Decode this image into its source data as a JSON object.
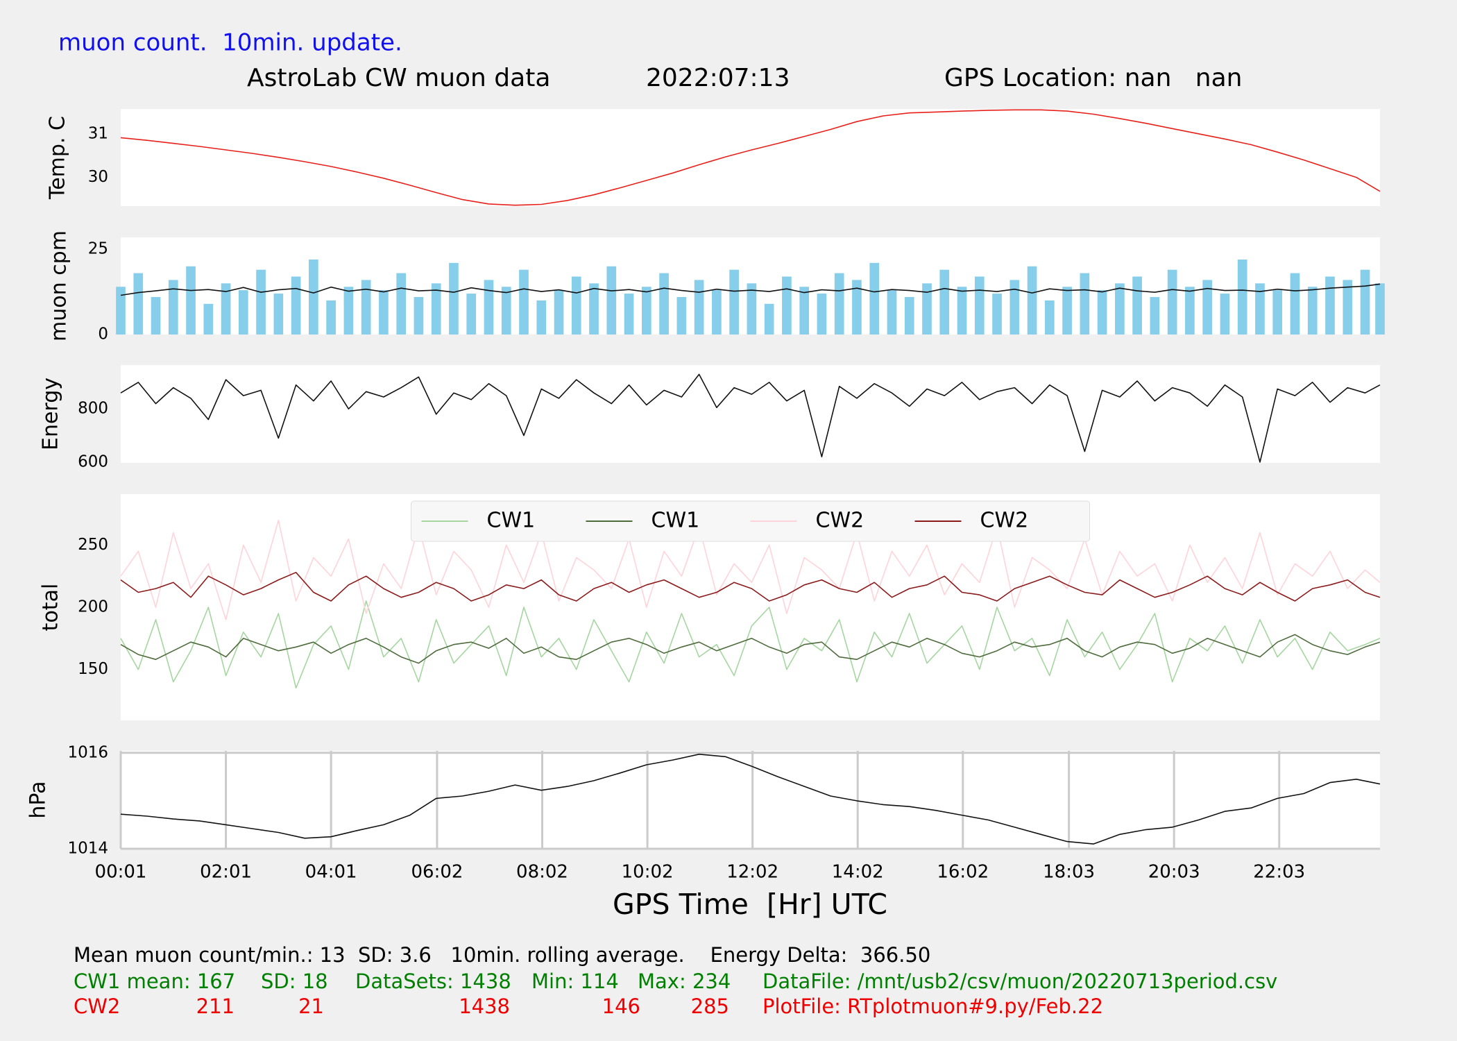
{
  "header": {
    "subtitle": "muon count.  10min. update.",
    "title": "AstroLab CW muon data",
    "date": "2022:07:13",
    "location": "GPS Location: nan   nan"
  },
  "chart_data": [
    {
      "type": "line",
      "ylabel": "Temp. C",
      "xlim": [
        1,
        1438
      ],
      "ylim": [
        29.34,
        31.57
      ],
      "yticks": [
        30,
        31
      ],
      "x": [
        1,
        31,
        61,
        91,
        121,
        151,
        181,
        211,
        241,
        271,
        301,
        331,
        361,
        391,
        421,
        451,
        481,
        511,
        541,
        571,
        601,
        631,
        661,
        691,
        721,
        751,
        781,
        811,
        841,
        871,
        901,
        931,
        961,
        991,
        1021,
        1051,
        1081,
        1111,
        1141,
        1171,
        1201,
        1231,
        1261,
        1291,
        1321,
        1351,
        1381,
        1411,
        1438
      ],
      "series": [
        {
          "color": "#e8201a",
          "values": [
            30.91,
            30.85,
            30.78,
            30.71,
            30.63,
            30.55,
            30.46,
            30.36,
            30.25,
            30.12,
            29.98,
            29.82,
            29.65,
            29.49,
            29.39,
            29.36,
            29.38,
            29.47,
            29.6,
            29.76,
            29.93,
            30.1,
            30.29,
            30.47,
            30.63,
            30.78,
            30.94,
            31.1,
            31.28,
            31.41,
            31.48,
            31.5,
            31.52,
            31.54,
            31.55,
            31.55,
            31.52,
            31.45,
            31.35,
            31.24,
            31.12,
            31.0,
            30.88,
            30.75,
            30.58,
            30.4,
            30.2,
            30.0,
            29.68
          ]
        }
      ]
    },
    {
      "type": "bar",
      "ylabel": "muon cpm",
      "xlim": [
        1,
        1438
      ],
      "ylim": [
        0,
        28.5
      ],
      "yticks": [
        0,
        25
      ],
      "x": [
        1,
        21,
        41,
        61,
        81,
        101,
        121,
        141,
        161,
        181,
        201,
        221,
        241,
        261,
        281,
        301,
        321,
        341,
        361,
        381,
        401,
        421,
        441,
        461,
        481,
        501,
        521,
        541,
        561,
        581,
        601,
        621,
        641,
        661,
        681,
        701,
        721,
        741,
        761,
        781,
        801,
        821,
        841,
        861,
        881,
        901,
        921,
        941,
        961,
        981,
        1001,
        1021,
        1041,
        1061,
        1081,
        1101,
        1121,
        1141,
        1161,
        1181,
        1201,
        1221,
        1241,
        1261,
        1281,
        1301,
        1321,
        1341,
        1361,
        1381,
        1401,
        1421,
        1438
      ],
      "series": [
        {
          "color": "#87ceeb",
          "values": [
            14,
            18,
            11,
            16,
            20,
            9,
            15,
            13,
            19,
            12,
            17,
            22,
            10,
            14,
            16,
            13,
            18,
            11,
            15,
            21,
            12,
            16,
            14,
            19,
            10,
            13,
            17,
            15,
            20,
            12,
            14,
            18,
            11,
            16,
            13,
            19,
            15,
            9,
            17,
            14,
            12,
            18,
            16,
            21,
            13,
            11,
            15,
            19,
            14,
            17,
            12,
            16,
            20,
            10,
            14,
            18,
            13,
            15,
            17,
            11,
            19,
            14,
            16,
            12,
            22,
            15,
            13,
            18,
            14,
            17,
            16,
            19,
            15
          ]
        },
        {
          "type": "line",
          "color": "#111111",
          "values": [
            11.5,
            12.3,
            12.8,
            13.4,
            12.9,
            13.2,
            12.6,
            13.8,
            12.4,
            13.1,
            13.5,
            12.2,
            13.9,
            12.7,
            13.3,
            12.5,
            13.6,
            12.8,
            13.0,
            12.4,
            13.7,
            12.9,
            12.3,
            13.4,
            12.6,
            13.1,
            12.2,
            13.5,
            12.8,
            13.2,
            12.5,
            13.6,
            12.9,
            12.4,
            13.3,
            12.7,
            13.0,
            12.6,
            13.4,
            12.3,
            13.1,
            12.8,
            13.6,
            12.5,
            13.2,
            12.9,
            12.4,
            13.5,
            12.7,
            13.0,
            12.6,
            13.3,
            12.2,
            13.4,
            12.9,
            13.1,
            12.5,
            13.6,
            12.8,
            12.4,
            13.2,
            12.7,
            13.5,
            12.9,
            13.0,
            12.6,
            13.3,
            12.8,
            13.1,
            13.6,
            13.9,
            14.2,
            14.8
          ]
        }
      ]
    },
    {
      "type": "line",
      "ylabel": "Energy",
      "xlim": [
        1,
        1438
      ],
      "ylim": [
        597,
        965
      ],
      "yticks": [
        600,
        800
      ],
      "x": [
        1,
        21,
        41,
        61,
        81,
        101,
        121,
        141,
        161,
        181,
        201,
        221,
        241,
        261,
        281,
        301,
        321,
        341,
        361,
        381,
        401,
        421,
        441,
        461,
        481,
        501,
        521,
        541,
        561,
        581,
        601,
        621,
        641,
        661,
        681,
        701,
        721,
        741,
        761,
        781,
        801,
        821,
        841,
        861,
        881,
        901,
        921,
        941,
        961,
        981,
        1001,
        1021,
        1041,
        1061,
        1081,
        1101,
        1121,
        1141,
        1161,
        1181,
        1201,
        1221,
        1241,
        1261,
        1281,
        1301,
        1321,
        1341,
        1361,
        1381,
        1401,
        1421,
        1438
      ],
      "series": [
        {
          "color": "#111111",
          "values": [
            860,
            900,
            820,
            880,
            840,
            760,
            910,
            850,
            870,
            690,
            890,
            830,
            905,
            800,
            865,
            845,
            880,
            920,
            780,
            860,
            835,
            895,
            850,
            700,
            875,
            840,
            910,
            860,
            820,
            890,
            815,
            870,
            845,
            930,
            805,
            880,
            855,
            900,
            830,
            870,
            620,
            885,
            840,
            895,
            860,
            810,
            875,
            850,
            900,
            835,
            865,
            880,
            820,
            890,
            850,
            640,
            870,
            845,
            905,
            830,
            880,
            860,
            810,
            890,
            845,
            600,
            875,
            850,
            900,
            825,
            880,
            860,
            890
          ]
        }
      ]
    },
    {
      "type": "line",
      "ylabel": "total",
      "xlim": [
        1,
        1438
      ],
      "ylim": [
        109,
        291
      ],
      "yticks": [
        150,
        200,
        250
      ],
      "legend": "upper center",
      "x": [
        1,
        21,
        41,
        61,
        81,
        101,
        121,
        141,
        161,
        181,
        201,
        221,
        241,
        261,
        281,
        301,
        321,
        341,
        361,
        381,
        401,
        421,
        441,
        461,
        481,
        501,
        521,
        541,
        561,
        581,
        601,
        621,
        641,
        661,
        681,
        701,
        721,
        741,
        761,
        781,
        801,
        821,
        841,
        861,
        881,
        901,
        921,
        941,
        961,
        981,
        1001,
        1021,
        1041,
        1061,
        1081,
        1101,
        1121,
        1141,
        1161,
        1181,
        1201,
        1221,
        1241,
        1261,
        1281,
        1301,
        1321,
        1341,
        1361,
        1381,
        1401,
        1421,
        1438
      ],
      "series": [
        {
          "name": "CW1",
          "color": "#a5d6a0",
          "values": [
            175,
            150,
            190,
            140,
            165,
            200,
            145,
            180,
            160,
            195,
            135,
            170,
            185,
            150,
            205,
            160,
            175,
            140,
            190,
            155,
            170,
            185,
            145,
            200,
            160,
            175,
            150,
            190,
            165,
            140,
            180,
            155,
            195,
            160,
            170,
            145,
            185,
            200,
            150,
            175,
            165,
            190,
            140,
            180,
            160,
            195,
            155,
            170,
            185,
            150,
            200,
            165,
            175,
            145,
            190,
            160,
            180,
            150,
            170,
            195,
            140,
            175,
            165,
            185,
            155,
            190,
            160,
            175,
            150,
            180,
            165,
            170,
            175
          ]
        },
        {
          "name": "CW1",
          "color": "#4e6b3c",
          "values": [
            170,
            162,
            158,
            165,
            172,
            168,
            160,
            175,
            170,
            165,
            168,
            172,
            163,
            170,
            175,
            168,
            160,
            155,
            165,
            170,
            172,
            167,
            175,
            163,
            168,
            160,
            158,
            165,
            172,
            175,
            170,
            163,
            168,
            172,
            165,
            170,
            175,
            168,
            163,
            170,
            172,
            160,
            158,
            165,
            172,
            168,
            175,
            170,
            163,
            160,
            165,
            172,
            168,
            170,
            175,
            165,
            160,
            168,
            172,
            170,
            163,
            167,
            175,
            170,
            165,
            160,
            172,
            178,
            170,
            165,
            162,
            168,
            172
          ]
        },
        {
          "name": "CW2",
          "color": "#ffd3d9",
          "values": [
            225,
            245,
            200,
            260,
            215,
            235,
            190,
            250,
            220,
            270,
            205,
            240,
            225,
            255,
            195,
            235,
            215,
            265,
            210,
            245,
            230,
            200,
            250,
            220,
            260,
            205,
            240,
            230,
            215,
            255,
            200,
            245,
            225,
            265,
            210,
            235,
            220,
            250,
            195,
            240,
            230,
            215,
            260,
            205,
            245,
            225,
            250,
            210,
            235,
            220,
            265,
            200,
            240,
            230,
            215,
            255,
            210,
            245,
            225,
            235,
            205,
            250,
            220,
            240,
            215,
            260,
            210,
            235,
            225,
            245,
            215,
            230,
            220
          ]
        },
        {
          "name": "CW2",
          "color": "#8b1a1a",
          "values": [
            222,
            212,
            215,
            220,
            208,
            225,
            218,
            210,
            215,
            222,
            228,
            212,
            205,
            218,
            225,
            215,
            208,
            212,
            220,
            215,
            205,
            210,
            218,
            215,
            222,
            210,
            205,
            215,
            220,
            212,
            218,
            222,
            215,
            208,
            212,
            220,
            215,
            205,
            210,
            218,
            222,
            215,
            212,
            220,
            208,
            215,
            218,
            225,
            212,
            210,
            205,
            215,
            220,
            225,
            218,
            212,
            210,
            222,
            215,
            208,
            212,
            218,
            225,
            215,
            210,
            220,
            212,
            205,
            215,
            218,
            222,
            212,
            208
          ]
        }
      ]
    },
    {
      "type": "line",
      "ylabel": "hPa",
      "xlabel": "GPS Time  [Hr] UTC",
      "grid": true,
      "xlim": [
        1,
        1438
      ],
      "ylim": [
        1014,
        1016.04
      ],
      "yticks": [
        1014,
        1016
      ],
      "xticks": [
        {
          "value": 1,
          "label": "00:01"
        },
        {
          "value": 121,
          "label": "02:01"
        },
        {
          "value": 241,
          "label": "04:01"
        },
        {
          "value": 362,
          "label": "06:02"
        },
        {
          "value": 482,
          "label": "08:02"
        },
        {
          "value": 602,
          "label": "10:02"
        },
        {
          "value": 722,
          "label": "12:02"
        },
        {
          "value": 842,
          "label": "14:02"
        },
        {
          "value": 962,
          "label": "16:02"
        },
        {
          "value": 1083,
          "label": "18:03"
        },
        {
          "value": 1203,
          "label": "20:03"
        },
        {
          "value": 1323,
          "label": "22:03"
        }
      ],
      "x": [
        1,
        31,
        61,
        91,
        121,
        151,
        181,
        211,
        241,
        271,
        301,
        331,
        361,
        391,
        421,
        451,
        481,
        511,
        541,
        571,
        601,
        631,
        661,
        691,
        721,
        751,
        781,
        811,
        841,
        871,
        901,
        931,
        961,
        991,
        1021,
        1051,
        1081,
        1111,
        1141,
        1171,
        1201,
        1231,
        1261,
        1291,
        1321,
        1351,
        1381,
        1411,
        1438
      ],
      "series": [
        {
          "color": "#111111",
          "values": [
            1014.72,
            1014.68,
            1014.62,
            1014.58,
            1014.5,
            1014.42,
            1014.34,
            1014.22,
            1014.25,
            1014.38,
            1014.5,
            1014.7,
            1015.05,
            1015.1,
            1015.2,
            1015.33,
            1015.22,
            1015.3,
            1015.42,
            1015.58,
            1015.75,
            1015.85,
            1015.97,
            1015.92,
            1015.72,
            1015.5,
            1015.3,
            1015.1,
            1015.0,
            1014.92,
            1014.88,
            1014.8,
            1014.7,
            1014.6,
            1014.45,
            1014.3,
            1014.15,
            1014.1,
            1014.3,
            1014.4,
            1014.45,
            1014.6,
            1014.78,
            1014.85,
            1015.05,
            1015.15,
            1015.38,
            1015.45,
            1015.35
          ]
        }
      ]
    }
  ],
  "footer": {
    "summary": "Mean muon count/min.: 13  SD: 3.6   10min. rolling average.    Energy Delta:  366.50",
    "rows": [
      [
        "CW1 mean: 167",
        "SD: 18",
        "DataSets: 1438",
        "Min: 114",
        "Max: 234",
        "DataFile: /mnt/usb2/csv/muon/20220713period.csv"
      ],
      [
        "CW2",
        "211",
        "21",
        "1438",
        "146",
        "285",
        "PlotFile: RTplotmuon#9.py/Feb.22"
      ]
    ]
  }
}
